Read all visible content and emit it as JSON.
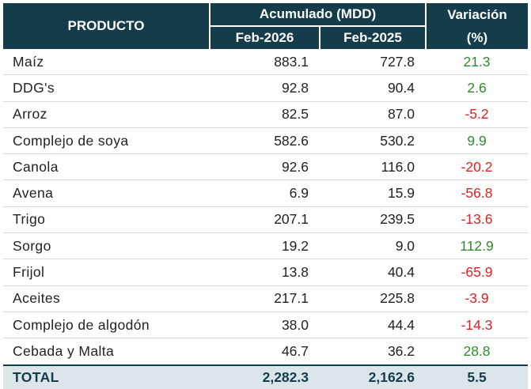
{
  "table": {
    "header": {
      "product": "PRODUCTO",
      "accumulated": "Acumulado (MDD)",
      "variation_line1": "Variación",
      "variation_line2": "(%)",
      "year1": "Feb-2026",
      "year2": "Feb-2025"
    },
    "rows": [
      {
        "product": "Maíz",
        "y2026": "883.1",
        "y2025": "727.8",
        "var": "21.3",
        "sign": "pos"
      },
      {
        "product": "DDG's",
        "y2026": "92.8",
        "y2025": "90.4",
        "var": "2.6",
        "sign": "pos"
      },
      {
        "product": "Arroz",
        "y2026": "82.5",
        "y2025": "87.0",
        "var": "-5.2",
        "sign": "neg"
      },
      {
        "product": "Complejo de soya",
        "y2026": "582.6",
        "y2025": "530.2",
        "var": "9.9",
        "sign": "pos"
      },
      {
        "product": "Canola",
        "y2026": "92.6",
        "y2025": "116.0",
        "var": "-20.2",
        "sign": "neg"
      },
      {
        "product": "Avena",
        "y2026": "6.9",
        "y2025": "15.9",
        "var": "-56.8",
        "sign": "neg"
      },
      {
        "product": "Trigo",
        "y2026": "207.1",
        "y2025": "239.5",
        "var": "-13.6",
        "sign": "neg"
      },
      {
        "product": "Sorgo",
        "y2026": "19.2",
        "y2025": "9.0",
        "var": "112.9",
        "sign": "pos"
      },
      {
        "product": "Frijol",
        "y2026": "13.8",
        "y2025": "40.4",
        "var": "-65.9",
        "sign": "neg"
      },
      {
        "product": "Aceites",
        "y2026": "217.1",
        "y2025": "225.8",
        "var": "-3.9",
        "sign": "neg"
      },
      {
        "product": "Complejo de algodón",
        "y2026": "38.0",
        "y2025": "44.4",
        "var": "-14.3",
        "sign": "neg"
      },
      {
        "product": "Cebada y Malta",
        "y2026": "46.7",
        "y2025": "36.2",
        "var": "28.8",
        "sign": "pos"
      }
    ],
    "total": {
      "product": "TOTAL",
      "y2026": "2,282.3",
      "y2025": "2,162.6",
      "var": "5.5"
    }
  },
  "colors": {
    "header_bg": "#143c4a",
    "total_bg": "#dce6ea",
    "positive": "#2e8b2e",
    "negative": "#e02020"
  }
}
